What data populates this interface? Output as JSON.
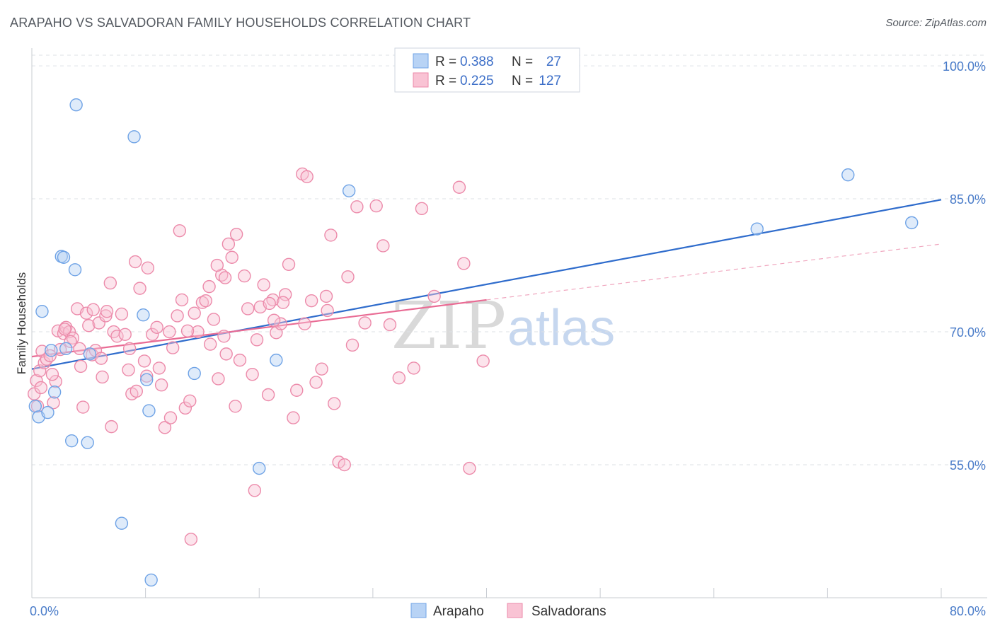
{
  "header": {
    "title": "ARAPAHO VS SALVADORAN FAMILY HOUSEHOLDS CORRELATION CHART",
    "source": "Source: ZipAtlas.com"
  },
  "watermark": {
    "zip": "ZIP",
    "atlas": "atlas"
  },
  "legend_top": {
    "rows": [
      {
        "r_label": "R =",
        "r_value": "0.388",
        "n_label": "N =",
        "n_value": "27",
        "color": "#b8d3f5"
      },
      {
        "r_label": "R =",
        "r_value": "0.225",
        "n_label": "N =",
        "n_value": "127",
        "color": "#f9c3d4"
      }
    ]
  },
  "legend_bottom": {
    "items": [
      {
        "label": "Arapaho",
        "color": "#b8d3f5"
      },
      {
        "label": "Salvadorans",
        "color": "#f9c3d4"
      }
    ]
  },
  "chart_data": {
    "type": "scatter",
    "title": "ARAPAHO VS SALVADORAN FAMILY HOUSEHOLDS CORRELATION CHART",
    "xlabel": "",
    "ylabel": "Family Households",
    "xlim": [
      0,
      80
    ],
    "ylim": [
      40,
      102
    ],
    "x_tick_labels": [
      "0.0%",
      "80.0%"
    ],
    "y_ticks": [
      55,
      70,
      85,
      100
    ],
    "y_tick_labels": [
      "55.0%",
      "70.0%",
      "85.0%",
      "100.0%"
    ],
    "grid": true,
    "series": [
      {
        "name": "Arapaho",
        "color": "#6fa3e6",
        "fill": "#b8d3f5",
        "trend": {
          "x0": 0,
          "y0": 65.8,
          "x1": 80,
          "y1": 84.9,
          "color": "#2f6ccc"
        },
        "points": [
          [
            0.3,
            61.6
          ],
          [
            0.6,
            60.4
          ],
          [
            0.9,
            72.3
          ],
          [
            1.4,
            60.9
          ],
          [
            1.7,
            67.9
          ],
          [
            2.0,
            63.2
          ],
          [
            2.6,
            78.5
          ],
          [
            2.8,
            78.4
          ],
          [
            3.5,
            57.7
          ],
          [
            4.9,
            57.5
          ],
          [
            3.8,
            77.0
          ],
          [
            5.1,
            67.5
          ],
          [
            3.9,
            95.6
          ],
          [
            7.9,
            48.4
          ],
          [
            9.0,
            92.0
          ],
          [
            9.8,
            71.9
          ],
          [
            10.1,
            64.6
          ],
          [
            10.3,
            61.1
          ],
          [
            10.5,
            42.0
          ],
          [
            14.3,
            65.3
          ],
          [
            20.0,
            54.6
          ],
          [
            21.5,
            66.8
          ],
          [
            27.9,
            85.9
          ],
          [
            63.8,
            81.6
          ],
          [
            71.8,
            87.7
          ],
          [
            77.4,
            82.3
          ],
          [
            3.0,
            68.1
          ]
        ]
      },
      {
        "name": "Salvadorans",
        "color": "#ec8aaa",
        "fill": "#f9c3d4",
        "trend": {
          "x0": 0,
          "y0": 67.2,
          "x1": 40,
          "y1": 73.6,
          "color": "#e96b94"
        },
        "trend_dashed": {
          "x0": 40,
          "y0": 73.6,
          "x1": 80,
          "y1": 79.9,
          "color": "#f0a7bf"
        },
        "points": [
          [
            0.2,
            63.0
          ],
          [
            0.4,
            64.5
          ],
          [
            0.5,
            61.6
          ],
          [
            0.7,
            65.6
          ],
          [
            0.9,
            67.8
          ],
          [
            1.1,
            66.5
          ],
          [
            1.3,
            66.9
          ],
          [
            1.6,
            67.3
          ],
          [
            1.9,
            62.0
          ],
          [
            2.1,
            64.4
          ],
          [
            2.3,
            70.1
          ],
          [
            2.5,
            68.0
          ],
          [
            2.8,
            69.8
          ],
          [
            3.0,
            70.5
          ],
          [
            3.3,
            70.0
          ],
          [
            3.6,
            69.3
          ],
          [
            4.0,
            72.6
          ],
          [
            4.2,
            68.1
          ],
          [
            4.5,
            61.5
          ],
          [
            4.8,
            72.1
          ],
          [
            5.0,
            70.7
          ],
          [
            5.3,
            67.4
          ],
          [
            5.6,
            67.9
          ],
          [
            5.9,
            71.0
          ],
          [
            6.2,
            64.9
          ],
          [
            6.5,
            71.8
          ],
          [
            6.9,
            75.5
          ],
          [
            7.2,
            70.0
          ],
          [
            7.5,
            69.5
          ],
          [
            7.9,
            72.0
          ],
          [
            8.2,
            69.7
          ],
          [
            8.5,
            65.7
          ],
          [
            8.8,
            63.0
          ],
          [
            9.1,
            77.9
          ],
          [
            9.5,
            74.9
          ],
          [
            9.9,
            66.7
          ],
          [
            10.2,
            77.2
          ],
          [
            10.6,
            69.7
          ],
          [
            11.0,
            70.5
          ],
          [
            11.4,
            64.0
          ],
          [
            11.7,
            59.2
          ],
          [
            12.1,
            70.0
          ],
          [
            12.4,
            68.2
          ],
          [
            12.8,
            71.8
          ],
          [
            13.2,
            73.6
          ],
          [
            13.5,
            61.4
          ],
          [
            13.9,
            62.2
          ],
          [
            14.3,
            72.1
          ],
          [
            14.6,
            70.0
          ],
          [
            15.0,
            73.3
          ],
          [
            15.3,
            73.5
          ],
          [
            15.7,
            68.6
          ],
          [
            16.0,
            71.4
          ],
          [
            16.4,
            64.7
          ],
          [
            16.7,
            76.4
          ],
          [
            17.0,
            76.1
          ],
          [
            17.3,
            79.9
          ],
          [
            17.6,
            78.4
          ],
          [
            17.9,
            61.6
          ],
          [
            18.3,
            66.8
          ],
          [
            18.7,
            76.3
          ],
          [
            19.0,
            72.6
          ],
          [
            19.4,
            65.2
          ],
          [
            19.8,
            69.1
          ],
          [
            20.1,
            72.8
          ],
          [
            20.4,
            75.3
          ],
          [
            20.8,
            62.9
          ],
          [
            21.2,
            73.6
          ],
          [
            21.5,
            69.9
          ],
          [
            21.9,
            70.9
          ],
          [
            22.3,
            74.2
          ],
          [
            22.6,
            77.6
          ],
          [
            23.0,
            60.3
          ],
          [
            23.3,
            63.4
          ],
          [
            23.8,
            87.8
          ],
          [
            24.2,
            87.5
          ],
          [
            24.6,
            73.5
          ],
          [
            25.0,
            64.3
          ],
          [
            25.5,
            65.8
          ],
          [
            25.9,
            74.0
          ],
          [
            26.3,
            80.9
          ],
          [
            26.6,
            61.9
          ],
          [
            27.0,
            55.3
          ],
          [
            27.5,
            55.0
          ],
          [
            27.8,
            76.2
          ],
          [
            28.2,
            68.5
          ],
          [
            28.6,
            84.1
          ],
          [
            29.3,
            71.0
          ],
          [
            30.3,
            84.2
          ],
          [
            30.9,
            79.7
          ],
          [
            31.5,
            70.8
          ],
          [
            32.3,
            64.8
          ],
          [
            33.6,
            65.9
          ],
          [
            34.3,
            83.9
          ],
          [
            35.4,
            74.0
          ],
          [
            37.6,
            86.3
          ],
          [
            38.0,
            77.7
          ],
          [
            38.5,
            54.6
          ],
          [
            39.7,
            66.7
          ],
          [
            13.0,
            81.4
          ],
          [
            18.0,
            81.0
          ],
          [
            16.3,
            77.5
          ],
          [
            14.0,
            46.6
          ],
          [
            10.1,
            65.0
          ],
          [
            9.2,
            63.3
          ],
          [
            7.0,
            59.3
          ],
          [
            6.1,
            67.0
          ],
          [
            4.3,
            66.1
          ],
          [
            20.9,
            73.2
          ],
          [
            22.1,
            73.3
          ],
          [
            15.6,
            75.1
          ],
          [
            12.2,
            60.3
          ],
          [
            8.6,
            68.1
          ],
          [
            11.2,
            65.9
          ],
          [
            19.6,
            52.1
          ],
          [
            24.0,
            70.9
          ],
          [
            17.1,
            67.5
          ],
          [
            6.6,
            72.3
          ],
          [
            2.9,
            70.3
          ],
          [
            5.4,
            72.5
          ],
          [
            13.7,
            70.1
          ],
          [
            16.9,
            69.5
          ],
          [
            21.3,
            71.3
          ],
          [
            26.0,
            72.4
          ],
          [
            1.8,
            65.2
          ],
          [
            0.8,
            63.7
          ],
          [
            3.4,
            68.9
          ]
        ]
      }
    ]
  }
}
